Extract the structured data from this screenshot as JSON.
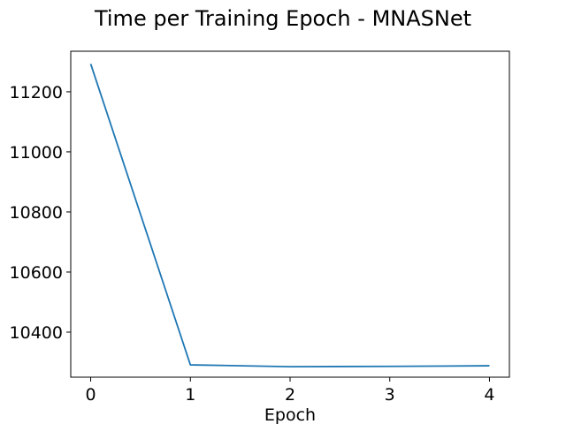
{
  "chart_data": {
    "type": "line",
    "title": "Time per Training Epoch - MNASNet",
    "xlabel": "Epoch",
    "ylabel": "",
    "x": [
      0,
      1,
      2,
      3,
      4
    ],
    "series": [
      {
        "values": [
          11293,
          10291,
          10285,
          10286,
          10288
        ],
        "color": "#1f77b4"
      }
    ],
    "xticks": [
      0,
      1,
      2,
      3,
      4
    ],
    "yticks": [
      10400,
      10600,
      10800,
      11000,
      11200
    ],
    "xlim": [
      -0.2,
      4.2
    ],
    "ylim": [
      10250,
      11335
    ],
    "grid": false,
    "legend": "none"
  }
}
